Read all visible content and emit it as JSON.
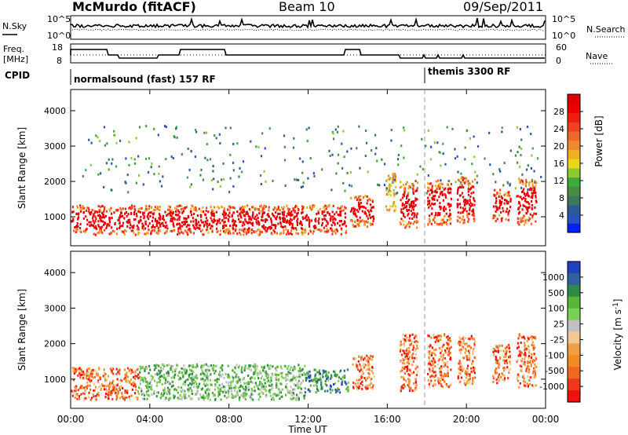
{
  "header": {
    "station": "McMurdo (fitACF)",
    "beam": "Beam 10",
    "date": "09/Sep/2011"
  },
  "top_panels": {
    "nsky_label": "N.Sky",
    "nsearch_label": "N.Search",
    "noise_left_ticks": [
      "10^5",
      "10^0"
    ],
    "noise_right_ticks": [
      "10^5",
      "10^0"
    ],
    "freq_label_line1": "Freq.",
    "freq_label_line2": "[MHz]",
    "freq_ticks": [
      "18",
      "8"
    ],
    "nave_label": "Nave",
    "nave_ticks": [
      "60",
      "0"
    ],
    "cpid_label": "CPID",
    "cpid_segments": [
      {
        "text": "normalsound (fast) 157 RF",
        "start_hour": 0.0
      },
      {
        "text": "themis 3300 RF",
        "start_hour": 18.0
      }
    ]
  },
  "chart_data": [
    {
      "type": "heatmap",
      "parameter": "Power",
      "units": "dB",
      "ylabel": "Slant Range [km]",
      "xlabel": "Time UT",
      "x_ticks": [
        "00:00",
        "04:00",
        "08:00",
        "12:00",
        "16:00",
        "20:00",
        "00:00"
      ],
      "xlim_hours": [
        0,
        24
      ],
      "y_ticks": [
        1000,
        2000,
        3000,
        4000
      ],
      "ylim_km": [
        180,
        4600
      ],
      "colorbar": {
        "label": "Power [dB]",
        "tick_labels": [
          "4",
          "8",
          "12",
          "16",
          "20",
          "24",
          "28"
        ],
        "range": [
          0,
          30
        ],
        "colors": [
          "#0020ff",
          "#2850c0",
          "#2e5a98",
          "#3a7a5c",
          "#4a8a44",
          "#3aaa3a",
          "#90c830",
          "#e8d818",
          "#f0b020",
          "#f08830",
          "#f06828",
          "#f04020",
          "#f01c10",
          "#ee0000",
          "#e00000"
        ]
      },
      "scatter_regions": [
        {
          "t0": 0.0,
          "t1": 13.9,
          "r0": 520,
          "r1": 1350,
          "level": "strong",
          "note": "main band"
        },
        {
          "t0": 14.1,
          "t1": 15.3,
          "r0": 750,
          "r1": 1650,
          "level": "strong"
        },
        {
          "t0": 15.9,
          "t1": 16.4,
          "r0": 1200,
          "r1": 2300,
          "level": "medium"
        },
        {
          "t0": 16.6,
          "t1": 17.5,
          "r0": 700,
          "r1": 2050,
          "level": "strong"
        },
        {
          "t0": 18.0,
          "t1": 19.2,
          "r0": 800,
          "r1": 2100,
          "level": "strong"
        },
        {
          "t0": 19.5,
          "t1": 20.4,
          "r0": 850,
          "r1": 2150,
          "level": "strong"
        },
        {
          "t0": 21.3,
          "t1": 22.2,
          "r0": 900,
          "r1": 1800,
          "level": "strong"
        },
        {
          "t0": 22.5,
          "t1": 23.5,
          "r0": 800,
          "r1": 2100,
          "level": "strong"
        },
        {
          "t0": 0.5,
          "t1": 23.8,
          "r0": 1700,
          "r1": 3600,
          "level": "sparse"
        }
      ]
    },
    {
      "type": "heatmap",
      "parameter": "Velocity",
      "units": "m s^-1",
      "ylabel": "Slant Range [km]",
      "xlabel": "Time UT",
      "x_ticks": [
        "00:00",
        "04:00",
        "08:00",
        "12:00",
        "16:00",
        "20:00",
        "00:00"
      ],
      "xlim_hours": [
        0,
        24
      ],
      "y_ticks": [
        1000,
        2000,
        3000,
        4000
      ],
      "ylim_km": [
        180,
        4600
      ],
      "colorbar": {
        "label": "Velocity [m s^-1]",
        "tick_labels": [
          "1000",
          "500",
          "100",
          "25",
          "-25",
          "-100",
          "-500",
          "-1000"
        ],
        "colors": [
          "#2040c0",
          "#3060a0",
          "#2f8a46",
          "#5ab43a",
          "#7ad050",
          "#c0c0c0",
          "#f0c890",
          "#f0a040",
          "#f08c20",
          "#f06820",
          "#f03818",
          "#f01010"
        ]
      },
      "scatter_regions": [
        {
          "t0": 0.0,
          "t1": 3.4,
          "r0": 450,
          "r1": 1350,
          "level": "orange"
        },
        {
          "t0": 3.4,
          "t1": 11.8,
          "r0": 450,
          "r1": 1450,
          "level": "green"
        },
        {
          "t0": 11.8,
          "t1": 14.0,
          "r0": 650,
          "r1": 1300,
          "level": "blue-green"
        },
        {
          "t0": 14.2,
          "t1": 15.3,
          "r0": 750,
          "r1": 1700,
          "level": "orange"
        },
        {
          "t0": 16.6,
          "t1": 17.5,
          "r0": 700,
          "r1": 2300,
          "level": "orange"
        },
        {
          "t0": 18.0,
          "t1": 19.2,
          "r0": 800,
          "r1": 2300,
          "level": "orange"
        },
        {
          "t0": 19.5,
          "t1": 20.4,
          "r0": 850,
          "r1": 2300,
          "level": "orange"
        },
        {
          "t0": 21.3,
          "t1": 22.2,
          "r0": 900,
          "r1": 2000,
          "level": "orange"
        },
        {
          "t0": 22.5,
          "t1": 23.5,
          "r0": 800,
          "r1": 2300,
          "level": "orange"
        }
      ]
    }
  ]
}
